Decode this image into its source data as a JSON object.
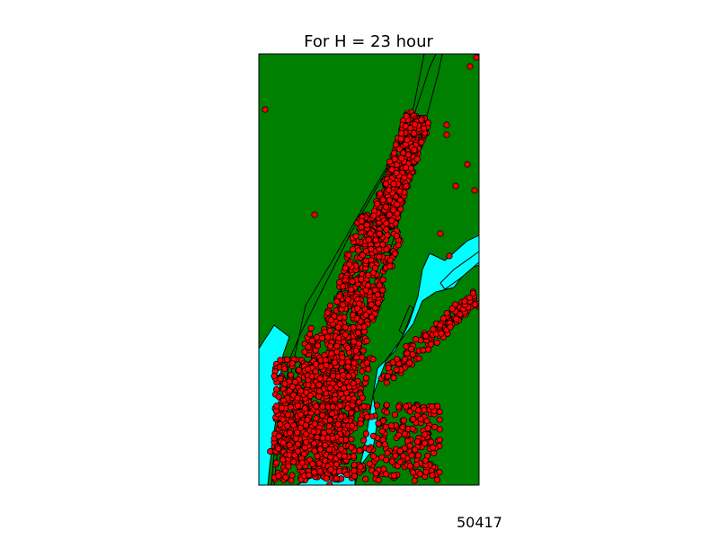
{
  "figure": {
    "title": "For H = 23 hour",
    "count_label": "50417"
  },
  "colors": {
    "land": "#008000",
    "water": "#00ffff",
    "point_fill": "#ff0000",
    "point_stroke": "#000000",
    "frame": "#000000"
  },
  "map_content": {
    "region": "Manhattan and surrounding boroughs",
    "marker": "red-circle"
  }
}
